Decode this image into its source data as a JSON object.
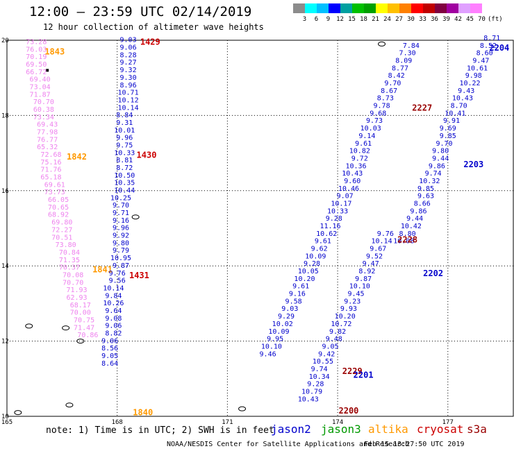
{
  "header": {
    "title": "12:00 – 23:59 UTC 02/14/2019",
    "subtitle": "12 hour collection of altimeter wave heights"
  },
  "colorbar": {
    "colors": [
      "#8c8c8c",
      "#00ffff",
      "#00c0ff",
      "#0000ff",
      "#00a0a0",
      "#00c000",
      "#00a000",
      "#ffff00",
      "#ffc000",
      "#ff8000",
      "#ff0000",
      "#c00000",
      "#800040",
      "#a000a0",
      "#e0a0ff",
      "#ff80ff",
      "#ffffff"
    ],
    "labels": [
      "3",
      "6",
      "9",
      "12",
      "15",
      "18",
      "21",
      "24",
      "27",
      "30",
      "33",
      "36",
      "39",
      "42",
      "45",
      "70",
      "(ft)"
    ]
  },
  "axes": {
    "x_ticks": [
      "165",
      "168",
      "171",
      "174",
      "177"
    ],
    "y_ticks": [
      "20",
      "18",
      "16",
      "14",
      "12",
      "10"
    ],
    "x_range": [
      165,
      178.8
    ],
    "y_range": [
      10,
      20
    ]
  },
  "colors": {
    "jason2": "#0000cc",
    "jason3": "#009900",
    "altika": "#ff9900",
    "cryosat": "#cc0000",
    "s3a": "#990000",
    "pink": "#ee82ee",
    "cyan": "#00aadd",
    "grid": "#000000"
  },
  "chart_data": {
    "type": "scatter",
    "title": "12:00 – 23:59 UTC 02/14/2019",
    "subtitle": "12 hour collection of altimeter wave heights",
    "grid": true,
    "xlim": [
      165,
      178.8
    ],
    "ylim": [
      10,
      20
    ],
    "series": [
      {
        "name": "1843",
        "color": "#ee82ee",
        "label_pos": [
          166.3,
          19.7
        ],
        "label_color": "#ff9900",
        "points": [
          [
            165.8,
            19.9,
            "73.28"
          ],
          [
            165.8,
            19.7,
            "76.03"
          ],
          [
            165.8,
            19.5,
            "70.19"
          ],
          [
            165.8,
            19.3,
            "69.50"
          ],
          [
            165.8,
            19.1,
            "66.72"
          ],
          [
            165.9,
            18.9,
            "69.40"
          ],
          [
            165.9,
            18.7,
            "73.04"
          ],
          [
            165.9,
            18.5,
            "71.87"
          ],
          [
            166.0,
            18.3,
            "70.70"
          ],
          [
            166.0,
            18.1,
            "60.38"
          ],
          [
            166.0,
            17.9,
            "73.34"
          ],
          [
            166.1,
            17.7,
            "69.43"
          ],
          [
            166.1,
            17.5,
            "77.98"
          ],
          [
            166.1,
            17.3,
            "76.77"
          ],
          [
            166.1,
            17.1,
            "65.32"
          ],
          [
            166.2,
            16.9,
            "72.68"
          ],
          [
            166.2,
            16.7,
            "75.16"
          ],
          [
            166.2,
            16.5,
            "71.76"
          ],
          [
            166.2,
            16.3,
            "65.18"
          ],
          [
            166.3,
            16.1,
            "69.61"
          ],
          [
            166.3,
            15.9,
            "73.73"
          ],
          [
            166.4,
            15.7,
            "66.05"
          ],
          [
            166.4,
            15.5,
            "70.65"
          ],
          [
            166.4,
            15.3,
            "68.92"
          ],
          [
            166.5,
            15.1,
            "69.80"
          ],
          [
            166.5,
            14.9,
            "72.27"
          ],
          [
            166.5,
            14.7,
            "70.51"
          ],
          [
            166.6,
            14.5,
            "73.80"
          ],
          [
            166.7,
            14.3,
            "70.84"
          ],
          [
            166.7,
            14.1,
            "71.35"
          ],
          [
            166.7,
            13.9,
            "70.37"
          ],
          [
            166.8,
            13.7,
            "70.08"
          ],
          [
            166.8,
            13.5,
            "70.70"
          ],
          [
            166.9,
            13.3,
            "71.93"
          ],
          [
            166.9,
            13.1,
            "62.93"
          ],
          [
            167.0,
            12.9,
            "68.17"
          ],
          [
            167.0,
            12.7,
            "70.00"
          ],
          [
            167.1,
            12.5,
            "70.75"
          ],
          [
            167.1,
            12.3,
            "71.47"
          ],
          [
            167.2,
            12.1,
            "70.86"
          ]
        ]
      },
      {
        "name": "1842",
        "color": "#ee82ee",
        "label_pos": [
          166.9,
          16.9
        ],
        "label_color": "#ff9900",
        "points": []
      },
      {
        "name": "1841",
        "color": "#ee82ee",
        "label_pos": [
          167.6,
          13.9
        ],
        "label_color": "#ff9900",
        "points": []
      },
      {
        "name": "1840",
        "color": "#ee82ee",
        "label_pos": [
          168.7,
          10.1
        ],
        "label_color": "#ff9900",
        "points": []
      },
      {
        "name": "1429",
        "color": "#0000cc",
        "label_pos": [
          168.9,
          19.95
        ],
        "label_color": "#cc0000",
        "points": [
          [
            168.3,
            19.95,
            "9.03"
          ],
          [
            168.3,
            19.75,
            "9.06"
          ],
          [
            168.3,
            19.55,
            "8.28"
          ],
          [
            168.3,
            19.35,
            "9.27"
          ],
          [
            168.3,
            19.15,
            "9.32"
          ],
          [
            168.3,
            18.95,
            "9.30"
          ],
          [
            168.3,
            18.75,
            "8.96"
          ],
          [
            168.3,
            18.55,
            "10.71"
          ],
          [
            168.3,
            18.35,
            "10.12"
          ],
          [
            168.3,
            18.15,
            "10.14"
          ],
          [
            168.2,
            17.95,
            "8.84"
          ],
          [
            168.2,
            17.75,
            "9.31"
          ],
          [
            168.2,
            17.55,
            "10.01"
          ],
          [
            168.2,
            17.35,
            "9.96"
          ],
          [
            168.2,
            17.15,
            "9.75"
          ],
          [
            168.2,
            16.95,
            "10.33"
          ]
        ]
      },
      {
        "name": "1430",
        "color": "#0000cc",
        "label_pos": [
          168.8,
          16.95
        ],
        "label_color": "#cc0000",
        "points": [
          [
            168.2,
            16.75,
            "8.81"
          ],
          [
            168.2,
            16.55,
            "8.72"
          ],
          [
            168.2,
            16.35,
            "10.50"
          ],
          [
            168.2,
            16.15,
            "10.35"
          ],
          [
            168.2,
            15.95,
            "10.44"
          ],
          [
            168.1,
            15.75,
            "10.25"
          ],
          [
            168.1,
            15.55,
            "9.70"
          ],
          [
            168.1,
            15.35,
            "9.71"
          ],
          [
            168.1,
            15.15,
            "9.16"
          ],
          [
            168.1,
            14.95,
            "9.96"
          ],
          [
            168.1,
            14.75,
            "9.92"
          ],
          [
            168.1,
            14.55,
            "9.80"
          ],
          [
            168.1,
            14.35,
            "9.79"
          ],
          [
            168.1,
            14.15,
            "10.95"
          ],
          [
            168.1,
            13.95,
            "9.87"
          ],
          [
            168.0,
            13.75,
            "9.76"
          ]
        ]
      },
      {
        "name": "1431",
        "color": "#0000cc",
        "label_pos": [
          168.6,
          13.75
        ],
        "label_color": "#cc0000",
        "points": [
          [
            168.0,
            13.55,
            "9.56"
          ],
          [
            167.9,
            13.35,
            "10.14"
          ],
          [
            167.9,
            13.15,
            "9.84"
          ],
          [
            167.9,
            12.95,
            "10.26"
          ],
          [
            167.9,
            12.75,
            "9.64"
          ],
          [
            167.9,
            12.55,
            "9.08"
          ],
          [
            167.9,
            12.35,
            "9.06"
          ],
          [
            167.9,
            12.15,
            "8.82"
          ],
          [
            167.8,
            11.95,
            "9.06"
          ],
          [
            167.8,
            11.75,
            "8.56"
          ],
          [
            167.8,
            11.55,
            "9.05"
          ],
          [
            167.8,
            11.35,
            "8.64"
          ]
        ]
      },
      {
        "name": "2204",
        "color": "#0000cc",
        "label_pos": [
          178.4,
          19.8
        ],
        "label_color": "#0000cc",
        "points": [
          [
            178.2,
            20.0,
            "8.71"
          ],
          [
            178.1,
            19.8,
            "8.52"
          ],
          [
            178.0,
            19.6,
            "8.60"
          ],
          [
            177.9,
            19.4,
            "9.47"
          ],
          [
            177.8,
            19.2,
            "10.61"
          ],
          [
            177.7,
            19.0,
            "9.98"
          ],
          [
            177.6,
            18.8,
            "10.22"
          ],
          [
            177.5,
            18.6,
            "9.43"
          ],
          [
            177.4,
            18.4,
            "10.43"
          ],
          [
            177.3,
            18.2,
            "8.70"
          ],
          [
            177.2,
            18.0,
            "10.41"
          ],
          [
            177.1,
            17.8,
            "9.91"
          ],
          [
            177.0,
            17.6,
            "9.69"
          ],
          [
            177.0,
            17.4,
            "9.85"
          ],
          [
            176.9,
            17.2,
            "9.70"
          ],
          [
            176.8,
            17.0,
            "9.80"
          ]
        ]
      },
      {
        "name": "2203",
        "color": "#0000cc",
        "label_pos": [
          177.7,
          16.7
        ],
        "label_color": "#0000cc",
        "points": [
          [
            176.8,
            16.8,
            "9.44"
          ],
          [
            176.7,
            16.6,
            "9.86"
          ],
          [
            176.6,
            16.4,
            "9.74"
          ],
          [
            176.5,
            16.2,
            "10.32"
          ],
          [
            176.4,
            16.0,
            "9.85"
          ],
          [
            176.4,
            15.8,
            "9.63"
          ],
          [
            176.3,
            15.6,
            "8.66"
          ],
          [
            176.2,
            15.4,
            "9.86"
          ],
          [
            176.1,
            15.2,
            "9.44"
          ],
          [
            176.0,
            15.0,
            "10.42"
          ],
          [
            175.9,
            14.8,
            "8.80"
          ],
          [
            175.8,
            14.6,
            "10.08"
          ]
        ]
      },
      {
        "name": "2202",
        "color": "#0000cc",
        "label_pos": [
          176.6,
          13.8
        ],
        "label_color": "#0000cc",
        "points": [
          [
            176.0,
            19.8,
            "7.84"
          ],
          [
            175.9,
            19.6,
            "7.30"
          ],
          [
            175.8,
            19.4,
            "8.09"
          ],
          [
            175.7,
            19.2,
            "8.77"
          ],
          [
            175.6,
            19.0,
            "8.42"
          ],
          [
            175.5,
            18.8,
            "9.70"
          ],
          [
            175.4,
            18.6,
            "8.67"
          ],
          [
            175.3,
            18.4,
            "8.73"
          ],
          [
            175.2,
            18.2,
            "9.78"
          ],
          [
            175.1,
            18.0,
            "9.68"
          ],
          [
            175.0,
            17.8,
            "9.73"
          ],
          [
            174.9,
            17.6,
            "10.03"
          ],
          [
            174.8,
            17.4,
            "9.14"
          ],
          [
            174.7,
            17.2,
            "9.61"
          ],
          [
            174.6,
            17.0,
            "10.82"
          ],
          [
            174.6,
            16.8,
            "9.72"
          ],
          [
            174.5,
            16.6,
            "10.36"
          ],
          [
            174.4,
            16.4,
            "10.43"
          ],
          [
            174.4,
            16.2,
            "9.60"
          ],
          [
            174.3,
            16.0,
            "10.46"
          ],
          [
            174.2,
            15.8,
            "9.07"
          ],
          [
            174.1,
            15.6,
            "10.17"
          ],
          [
            174.0,
            15.4,
            "10.33"
          ],
          [
            173.9,
            15.2,
            "9.28"
          ],
          [
            173.8,
            15.0,
            "11.16"
          ],
          [
            173.7,
            14.8,
            "10.62"
          ],
          [
            173.6,
            14.6,
            "9.61"
          ],
          [
            173.5,
            14.4,
            "9.62"
          ],
          [
            173.4,
            14.2,
            "10.09"
          ],
          [
            173.3,
            14.0,
            "9.28"
          ],
          [
            173.2,
            13.8,
            "10.05"
          ],
          [
            173.1,
            13.6,
            "10.20"
          ],
          [
            173.0,
            13.4,
            "9.61"
          ],
          [
            172.9,
            13.2,
            "9.16"
          ],
          [
            172.8,
            13.0,
            "9.58"
          ],
          [
            172.7,
            12.8,
            "9.03"
          ],
          [
            172.6,
            12.6,
            "9.29"
          ],
          [
            172.5,
            12.4,
            "10.02"
          ],
          [
            172.4,
            12.2,
            "10.09"
          ],
          [
            172.3,
            12.0,
            "9.95"
          ],
          [
            172.2,
            11.8,
            "10.10"
          ],
          [
            172.1,
            11.6,
            "9.46"
          ]
        ]
      },
      {
        "name": "2228",
        "color": "#0000cc",
        "label_pos": [
          175.9,
          14.7
        ],
        "label_color": "#990000",
        "points": [
          [
            175.3,
            14.8,
            "9.76"
          ],
          [
            175.2,
            14.6,
            "10.14"
          ],
          [
            175.1,
            14.4,
            "9.67"
          ],
          [
            175.0,
            14.2,
            "9.52"
          ],
          [
            174.9,
            14.0,
            "9.47"
          ],
          [
            174.8,
            13.8,
            "8.92"
          ],
          [
            174.7,
            13.6,
            "9.87"
          ],
          [
            174.6,
            13.4,
            "10.10"
          ],
          [
            174.5,
            13.2,
            "9.45"
          ],
          [
            174.4,
            13.0,
            "9.23"
          ],
          [
            174.3,
            12.8,
            "9.93"
          ],
          [
            174.2,
            12.6,
            "10.20"
          ],
          [
            174.1,
            12.4,
            "10.72"
          ],
          [
            174.0,
            12.2,
            "9.82"
          ],
          [
            173.9,
            12.0,
            "9.48"
          ],
          [
            173.8,
            11.8,
            "9.05"
          ],
          [
            173.7,
            11.6,
            "9.42"
          ]
        ]
      },
      {
        "name": "2227",
        "color": "#0000cc",
        "label_pos": [
          176.3,
          18.2
        ],
        "label_color": "#990000",
        "points": []
      },
      {
        "name": "2229",
        "color": "#0000cc",
        "label_pos": [
          174.4,
          11.2
        ],
        "label_color": "#990000",
        "points": []
      },
      {
        "name": "2201",
        "color": "#0000cc",
        "label_pos": [
          174.7,
          11.1
        ],
        "label_color": "#0000cc",
        "points": [
          [
            173.6,
            11.4,
            "10.55"
          ],
          [
            173.5,
            11.2,
            "9.74"
          ],
          [
            173.5,
            11.0,
            "10.34"
          ],
          [
            173.4,
            10.8,
            "9.28"
          ],
          [
            173.3,
            10.6,
            "10.79"
          ],
          [
            173.2,
            10.4,
            "10.43"
          ]
        ]
      },
      {
        "name": "2200",
        "color": "#0000cc",
        "label_pos": [
          174.3,
          10.15
        ],
        "label_color": "#990000",
        "points": []
      }
    ]
  },
  "footer": {
    "note": "note: 1) Time is in UTC; 2) SWH is in feet",
    "legend": [
      {
        "label": "jason2",
        "color": "#0000cc"
      },
      {
        "label": "jason3",
        "color": "#009900"
      },
      {
        "label": "altika",
        "color": "#ff9900"
      },
      {
        "label": "cryosat",
        "color": "#cc0000"
      },
      {
        "label": "s3a",
        "color": "#990000"
      }
    ],
    "credit": "NOAA/NESDIS Center for Satellite Applications and Research",
    "timestamp": "Feb 15 13:27:50 UTC 2019"
  }
}
